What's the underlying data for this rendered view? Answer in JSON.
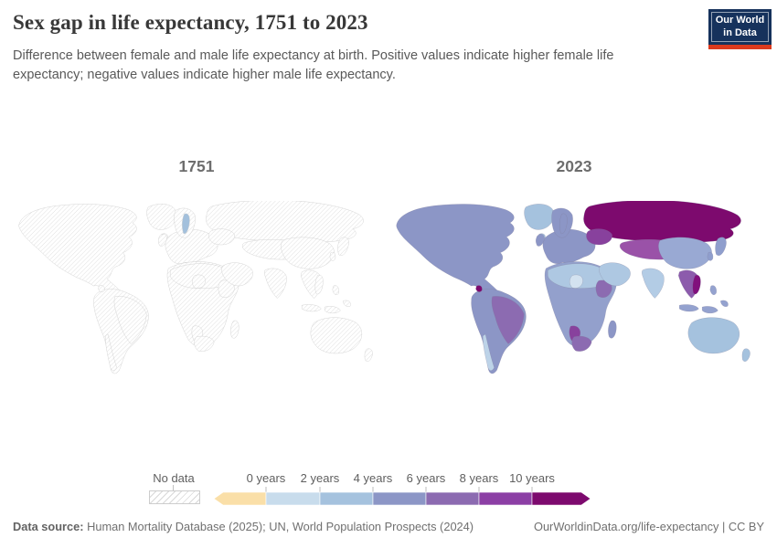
{
  "header": {
    "title": "Sex gap in life expectancy, 1751 to 2023",
    "subtitle": "Difference between female and male life expectancy at birth. Positive values indicate higher female life expectancy; negative values indicate higher male life expectancy.",
    "logo": {
      "line1": "Our World",
      "line2": "in Data",
      "bg_color": "#16325c",
      "accent_color": "#dc3a1d"
    }
  },
  "maps": {
    "left_year": "1751",
    "right_year": "2023"
  },
  "legend": {
    "no_data_label": "No data",
    "ticks": [
      "0 years",
      "2 years",
      "4 years",
      "6 years",
      "8 years",
      "10 years"
    ]
  },
  "footer": {
    "source_label": "Data source:",
    "source_text": " Human Mortality Database (2025); UN, World Population Prospects (2024)",
    "attribution": "OurWorldinData.org/life-expectancy | CC BY"
  },
  "chart_data": {
    "type": "heatmap",
    "subtype": "choropleth_world_map_pair",
    "title": "Sex gap in life expectancy, 1751 to 2023",
    "unit": "years",
    "legend_ticks": [
      "0 years",
      "2 years",
      "4 years",
      "6 years",
      "8 years",
      "10 years"
    ],
    "bins": [
      {
        "label": "No data",
        "color": "hatched-gray"
      },
      {
        "label": "< 0 years",
        "color": "#fadfa8"
      },
      {
        "label": "0–2 years",
        "color": "#c8dcec"
      },
      {
        "label": "2–4 years",
        "color": "#a5c2de"
      },
      {
        "label": "4–6 years",
        "color": "#8c96c6"
      },
      {
        "label": "6–8 years",
        "color": "#8c6bb1"
      },
      {
        "label": "8–10 years",
        "color": "#8c3fa5"
      },
      {
        "label": "10+ years",
        "color": "#7d0a6e"
      }
    ],
    "maps": [
      {
        "year": "1751",
        "coverage": "All countries shown as No data except Sweden",
        "values": {
          "Sweden": "2–4 years"
        }
      },
      {
        "year": "2023",
        "values": {
          "Russia": "10+ years",
          "Ukraine & Belarus": "8–10 years",
          "Kazakhstan & Mongolia": "8–10 years",
          "Eastern Europe": "6–8 years",
          "Western & Northern Europe": "4–6 years",
          "China": "4–6 years",
          "Japan & South Korea": "4–6 years",
          "India": "2–4 years",
          "Middle East": "2–4 years",
          "United States & Canada": "4–6 years",
          "Greenland": "2–4 years",
          "Mexico & Central America": "4–6 years",
          "El Salvador": "10+ years",
          "Brazil, Colombia & Venezuela": "6–8 years",
          "Andean & Southern South America": "4–6 years",
          "Chile (coast)": "0–2 years",
          "Northern Africa": "2–4 years",
          "Niger": "0–2 years",
          "Sudan": "6–8 years",
          "Sub-Saharan Africa": "4–6 years",
          "Namibia": "8–10 years",
          "South Africa": "6–8 years",
          "Myanmar, Thailand & Cambodia": "6–8 years",
          "Vietnam": "10+ years",
          "Indonesia & Philippines": "4–6 years",
          "Australia & New Zealand": "2–4 years"
        }
      }
    ],
    "fills_1751": {
      "sweden": "#a3c0dc"
    },
    "fills_2023": {
      "north_america": "#8c96c6",
      "greenland": "#a5c2de",
      "iceland": "#a5c2de",
      "guatemala": "#7d0a6e",
      "south_america": "#8c96c6",
      "brazil": "#8c6bb1",
      "chile": "#bdd3e8",
      "europe": "#8c96c6",
      "uk": "#8c96c6",
      "scandinavia": "#8c96c6",
      "sweden": "#8c96c6",
      "russia": "#7d0a6e",
      "ukraine_belarus": "#88419d",
      "central_asia": "#9a52a8",
      "middle_east": "#aec8e2",
      "africa": "#93a0cc",
      "north_africa": "#aec8e2",
      "niger": "#d3e2f0",
      "sudan": "#8c6bb1",
      "namibia": "#88419d",
      "south_africa": "#8c6bb1",
      "madagascar": "#8c96c6",
      "india": "#b3cce5",
      "china": "#99a9d3",
      "korea": "#8f9ecd",
      "japan": "#8f9ecd",
      "se_asia": "#8c5bac",
      "vietnam": "#810f7c",
      "philippines": "#94a2cf",
      "indonesia": "#94a2cf",
      "australia": "#a5c2de",
      "new_zealand": "#a5c2de"
    }
  }
}
